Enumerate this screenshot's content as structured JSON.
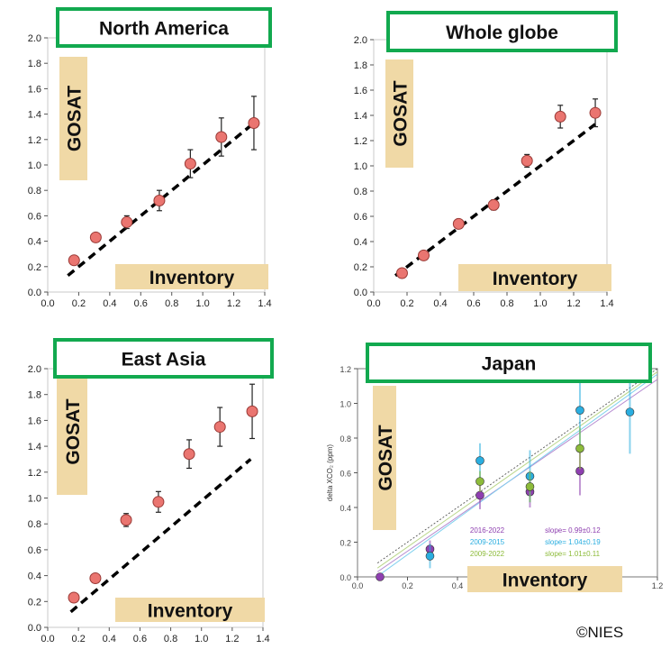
{
  "credit": "©NIES",
  "chart_data": [
    {
      "type": "scatter",
      "title": "North America",
      "ylabel_badge": "GOSAT",
      "xlabel_badge": "Inventory",
      "xlim": [
        0.0,
        1.4
      ],
      "ylim": [
        0.0,
        2.0
      ],
      "xticks": [
        "0.0",
        "0.2",
        "0.4",
        "0.6",
        "0.8",
        "1.0",
        "1.2",
        "1.4"
      ],
      "yticks": [
        "0.0",
        "0.2",
        "0.4",
        "0.6",
        "0.8",
        "1.0",
        "1.2",
        "1.4",
        "1.6",
        "1.8",
        "2.0"
      ],
      "points": [
        {
          "x": 0.17,
          "y": 0.25,
          "err": 0.02
        },
        {
          "x": 0.31,
          "y": 0.43,
          "err": 0.02
        },
        {
          "x": 0.51,
          "y": 0.55,
          "err": 0.05
        },
        {
          "x": 0.72,
          "y": 0.72,
          "err": 0.08
        },
        {
          "x": 0.92,
          "y": 1.01,
          "err": 0.11
        },
        {
          "x": 1.12,
          "y": 1.22,
          "err": 0.15
        },
        {
          "x": 1.33,
          "y": 1.33,
          "err": 0.21
        }
      ],
      "reference_line": {
        "x": [
          0.13,
          1.33
        ],
        "y": [
          0.13,
          1.33
        ]
      }
    },
    {
      "type": "scatter",
      "title": "Whole globe",
      "ylabel_badge": "GOSAT",
      "xlabel_badge": "Inventory",
      "xlim": [
        0.0,
        1.4
      ],
      "ylim": [
        0.0,
        2.0
      ],
      "xticks": [
        "0.0",
        "0.2",
        "0.4",
        "0.6",
        "0.8",
        "1.0",
        "1.2",
        "1.4"
      ],
      "yticks": [
        "0.0",
        "0.2",
        "0.4",
        "0.6",
        "0.8",
        "1.0",
        "1.2",
        "1.4",
        "1.6",
        "1.8",
        "2.0"
      ],
      "points": [
        {
          "x": 0.17,
          "y": 0.15,
          "err": 0.02
        },
        {
          "x": 0.3,
          "y": 0.29,
          "err": 0.02
        },
        {
          "x": 0.51,
          "y": 0.54,
          "err": 0.02
        },
        {
          "x": 0.72,
          "y": 0.69,
          "err": 0.04
        },
        {
          "x": 0.92,
          "y": 1.04,
          "err": 0.05
        },
        {
          "x": 1.12,
          "y": 1.39,
          "err": 0.09
        },
        {
          "x": 1.33,
          "y": 1.42,
          "err": 0.11
        }
      ],
      "reference_line": {
        "x": [
          0.13,
          1.33
        ],
        "y": [
          0.13,
          1.33
        ]
      }
    },
    {
      "type": "scatter",
      "title": "East Asia",
      "ylabel_badge": "GOSAT",
      "xlabel_badge": "Inventory",
      "xlim": [
        0.0,
        1.4
      ],
      "ylim": [
        0.0,
        2.0
      ],
      "xticks": [
        "0.0",
        "0.2",
        "0.4",
        "0.6",
        "0.8",
        "1.0",
        "1.2",
        "1.4"
      ],
      "yticks": [
        "0.0",
        "0.2",
        "0.4",
        "0.6",
        "0.8",
        "1.0",
        "1.2",
        "1.4",
        "1.6",
        "1.8",
        "2.0"
      ],
      "points": [
        {
          "x": 0.17,
          "y": 0.23,
          "err": 0.02
        },
        {
          "x": 0.31,
          "y": 0.38,
          "err": 0.02
        },
        {
          "x": 0.51,
          "y": 0.83,
          "err": 0.05
        },
        {
          "x": 0.72,
          "y": 0.97,
          "err": 0.08
        },
        {
          "x": 0.92,
          "y": 1.34,
          "err": 0.11
        },
        {
          "x": 1.12,
          "y": 1.55,
          "err": 0.15
        },
        {
          "x": 1.33,
          "y": 1.67,
          "err": 0.21
        }
      ],
      "reference_line": {
        "x": [
          0.15,
          1.32
        ],
        "y": [
          0.12,
          1.3
        ]
      }
    },
    {
      "type": "scatter",
      "title": "Japan",
      "ylabel_badge": "GOSAT",
      "xlabel_badge": "Inventory",
      "ylabel": "delta XCO₂ (ppm)",
      "xlim": [
        0.0,
        1.2
      ],
      "ylim": [
        0.0,
        1.2
      ],
      "xticks": [
        "0.0",
        "0.2",
        "0.4",
        "0.6",
        "0.8",
        "1.0",
        "1.2"
      ],
      "yticks": [
        "0.0",
        "0.2",
        "0.4",
        "0.6",
        "0.8",
        "1.0",
        "1.2"
      ],
      "series": [
        {
          "name": "2016-2022",
          "slope_label": "slope= 0.99±0.12",
          "color": "#8e3fb0",
          "points": [
            {
              "x": 0.09,
              "y": 0.0,
              "err": 0.01
            },
            {
              "x": 0.29,
              "y": 0.16,
              "err": 0.05
            },
            {
              "x": 0.49,
              "y": 0.47,
              "err": 0.08
            },
            {
              "x": 0.69,
              "y": 0.49,
              "err": 0.09
            },
            {
              "x": 0.89,
              "y": 0.61,
              "err": 0.14
            }
          ]
        },
        {
          "name": "2009-2015",
          "slope_label": "slope= 1.04±0.19",
          "color": "#2aaee0",
          "points": [
            {
              "x": 0.29,
              "y": 0.12,
              "err": 0.07
            },
            {
              "x": 0.49,
              "y": 0.67,
              "err": 0.1
            },
            {
              "x": 0.69,
              "y": 0.58,
              "err": 0.15
            },
            {
              "x": 0.89,
              "y": 0.96,
              "err": 0.22
            },
            {
              "x": 1.09,
              "y": 0.95,
              "err": 0.24
            }
          ]
        },
        {
          "name": "2009-2022",
          "slope_label": "slope= 1.01±0.11",
          "color": "#8dbb3a",
          "points": [
            {
              "x": 0.49,
              "y": 0.55,
              "err": 0.06
            },
            {
              "x": 0.69,
              "y": 0.52,
              "err": 0.09
            },
            {
              "x": 0.89,
              "y": 0.74,
              "err": 0.12
            }
          ]
        }
      ]
    }
  ]
}
